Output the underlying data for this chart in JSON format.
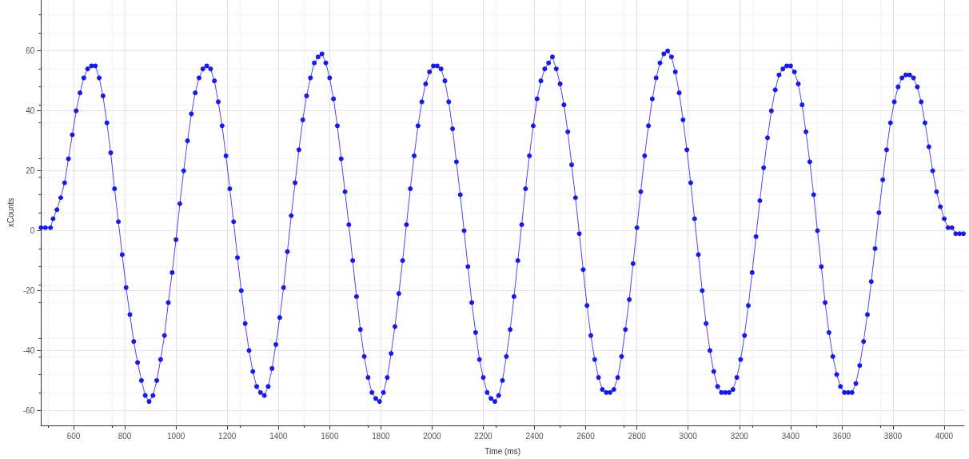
{
  "chart_data": {
    "type": "line",
    "xlabel": "Time (ms)",
    "ylabel": "xCounts",
    "marker": "circle",
    "line_style": "solid",
    "grid": true,
    "xlim": [
      473,
      4078
    ],
    "ylim": [
      -65,
      77
    ],
    "xticks": [
      600,
      800,
      1000,
      1200,
      1400,
      1600,
      1800,
      2000,
      2200,
      2400,
      2600,
      2800,
      3000,
      3200,
      3400,
      3600,
      3800,
      4000
    ],
    "yticks": [
      -60,
      -40,
      -20,
      0,
      20,
      40,
      60
    ],
    "series": [
      {
        "color": "#1a1ae6",
        "x": [
          473,
          490,
          510,
          520,
          535,
          550,
          565,
          580,
          595,
          610,
          625,
          640,
          655,
          670,
          685,
          700,
          715,
          730,
          745,
          760,
          775,
          790,
          805,
          820,
          835,
          850,
          865,
          880,
          895,
          910,
          925,
          940,
          955,
          970,
          985,
          1000,
          1015,
          1030,
          1045,
          1060,
          1075,
          1090,
          1105,
          1120,
          1135,
          1150,
          1165,
          1180,
          1195,
          1210,
          1225,
          1240,
          1255,
          1270,
          1285,
          1300,
          1315,
          1330,
          1345,
          1360,
          1375,
          1390,
          1405,
          1420,
          1435,
          1450,
          1465,
          1480,
          1495,
          1510,
          1525,
          1540,
          1555,
          1570,
          1585,
          1600,
          1615,
          1630,
          1645,
          1660,
          1675,
          1690,
          1705,
          1720,
          1735,
          1750,
          1765,
          1780,
          1795,
          1810,
          1825,
          1840,
          1855,
          1870,
          1885,
          1900,
          1915,
          1930,
          1945,
          1960,
          1975,
          1990,
          2005,
          2020,
          2035,
          2050,
          2065,
          2080,
          2095,
          2110,
          2125,
          2140,
          2155,
          2170,
          2185,
          2200,
          2215,
          2230,
          2245,
          2260,
          2275,
          2290,
          2305,
          2320,
          2335,
          2350,
          2365,
          2380,
          2395,
          2410,
          2425,
          2440,
          2455,
          2470,
          2485,
          2500,
          2515,
          2530,
          2545,
          2560,
          2575,
          2590,
          2605,
          2620,
          2635,
          2650,
          2665,
          2680,
          2695,
          2710,
          2725,
          2740,
          2755,
          2770,
          2785,
          2800,
          2815,
          2830,
          2845,
          2860,
          2875,
          2890,
          2905,
          2920,
          2935,
          2950,
          2965,
          2980,
          2995,
          3010,
          3025,
          3040,
          3055,
          3070,
          3085,
          3100,
          3115,
          3130,
          3145,
          3160,
          3175,
          3190,
          3205,
          3220,
          3235,
          3250,
          3265,
          3280,
          3295,
          3310,
          3325,
          3340,
          3355,
          3370,
          3385,
          3400,
          3415,
          3430,
          3445,
          3460,
          3475,
          3490,
          3505,
          3520,
          3535,
          3550,
          3565,
          3580,
          3595,
          3610,
          3625,
          3640,
          3655,
          3670,
          3685,
          3700,
          3715,
          3730,
          3745,
          3760,
          3775,
          3790,
          3805,
          3820,
          3835,
          3850,
          3865,
          3880,
          3895,
          3910,
          3925,
          3940,
          3955,
          3970,
          3985,
          4000,
          4015,
          4030,
          4045,
          4060,
          4075
        ],
        "values": [
          1,
          1,
          1,
          4,
          7,
          11,
          16,
          24,
          32,
          40,
          46,
          51,
          54,
          55,
          55,
          51,
          45,
          36,
          26,
          14,
          3,
          -8,
          -19,
          -28,
          -37,
          -44,
          -50,
          -55,
          -57,
          -55,
          -50,
          -43,
          -35,
          -24,
          -14,
          -3,
          9,
          20,
          30,
          39,
          46,
          51,
          54,
          55,
          54,
          50,
          43,
          35,
          25,
          14,
          3,
          -9,
          -20,
          -31,
          -40,
          -47,
          -52,
          -54,
          -55,
          -52,
          -46,
          -38,
          -29,
          -19,
          -7,
          5,
          16,
          27,
          37,
          45,
          51,
          56,
          58,
          59,
          56,
          51,
          44,
          35,
          24,
          13,
          2,
          -10,
          -22,
          -33,
          -42,
          -49,
          -54,
          -56,
          -57,
          -54,
          -49,
          -41,
          -32,
          -21,
          -10,
          2,
          14,
          25,
          35,
          43,
          49,
          53,
          55,
          55,
          54,
          50,
          43,
          34,
          23,
          12,
          0,
          -12,
          -24,
          -34,
          -43,
          -49,
          -54,
          -56,
          -57,
          -55,
          -50,
          -42,
          -33,
          -22,
          -10,
          2,
          14,
          25,
          35,
          44,
          50,
          54,
          56,
          58,
          54,
          49,
          42,
          33,
          22,
          11,
          -1,
          -13,
          -25,
          -35,
          -43,
          -49,
          -53,
          -54,
          -54,
          -53,
          -49,
          -42,
          -33,
          -23,
          -11,
          1,
          13,
          25,
          35,
          44,
          51,
          56,
          59,
          60,
          58,
          53,
          46,
          37,
          27,
          16,
          4,
          -8,
          -20,
          -31,
          -40,
          -47,
          -52,
          -54,
          -54,
          -54,
          -53,
          -49,
          -43,
          -35,
          -25,
          -14,
          -2,
          10,
          21,
          31,
          40,
          47,
          52,
          54,
          55,
          55,
          53,
          49,
          42,
          33,
          23,
          12,
          0,
          -12,
          -24,
          -34,
          -42,
          -48,
          -52,
          -54,
          -54,
          -54,
          -51,
          -45,
          -37,
          -28,
          -17,
          -6,
          6,
          17,
          27,
          36,
          43,
          48,
          51,
          52,
          52,
          51,
          48,
          43,
          36,
          28,
          20,
          13,
          8,
          4,
          1,
          1,
          -1,
          -1,
          -1
        ]
      }
    ]
  }
}
